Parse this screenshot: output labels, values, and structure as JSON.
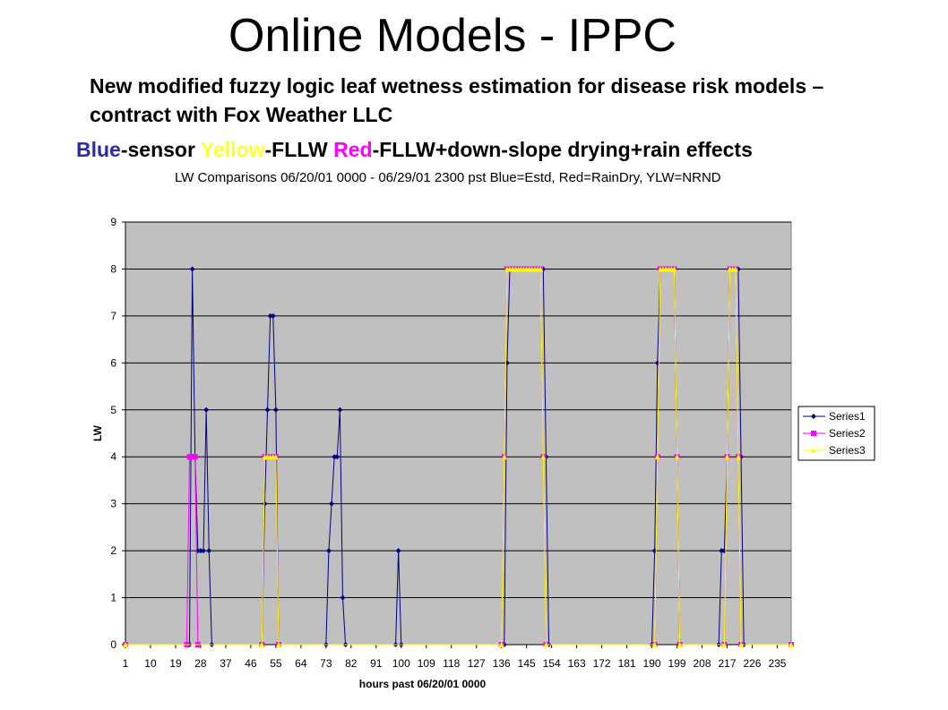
{
  "slide": {
    "title": "Online Models - IPPC",
    "subtitle": "New modified fuzzy logic leaf wetness estimation for disease risk models – contract with Fox Weather LLC",
    "legend_parts": [
      {
        "text": "Blue",
        "color": "#2a2aaa"
      },
      {
        "text": "-sensor ",
        "color": "#000000"
      },
      {
        "text": "Yellow",
        "color": "#ffff33"
      },
      {
        "text": "-FLLW ",
        "color": "#000000"
      },
      {
        "text": "Red",
        "color": "#ff00ff"
      },
      {
        "text": "-FLLW+down-slope drying+rain effects",
        "color": "#000000"
      }
    ]
  },
  "chart_data": {
    "type": "line",
    "title": "LW Comparisons 06/20/01 0000 - 06/29/01 2300 pst Blue=Estd, Red=RainDry, YLW=NRND",
    "xlabel": "hours past 06/20/01 0000",
    "ylabel": "LW",
    "xlim": [
      1,
      240
    ],
    "ylim": [
      0,
      9
    ],
    "yticks": [
      0,
      1,
      2,
      3,
      4,
      5,
      6,
      7,
      8,
      9
    ],
    "xticks": [
      1,
      10,
      19,
      28,
      37,
      46,
      55,
      64,
      73,
      82,
      91,
      100,
      109,
      118,
      127,
      136,
      145,
      154,
      163,
      172,
      181,
      190,
      199,
      208,
      217,
      226,
      235
    ],
    "grid": "horizontal",
    "legend_position": "right",
    "plot_background": "#c0c0c0",
    "series": [
      {
        "name": "Series1",
        "color": "#000080",
        "marker": "diamond",
        "points": [
          [
            1,
            0
          ],
          [
            24,
            0
          ],
          [
            25,
            8
          ],
          [
            26,
            4
          ],
          [
            27,
            2
          ],
          [
            28,
            2
          ],
          [
            29,
            2
          ],
          [
            30,
            5
          ],
          [
            31,
            2
          ],
          [
            32,
            0
          ],
          [
            50,
            0
          ],
          [
            51,
            3
          ],
          [
            52,
            5
          ],
          [
            53,
            7
          ],
          [
            54,
            7
          ],
          [
            55,
            5
          ],
          [
            56,
            0
          ],
          [
            73,
            0
          ],
          [
            74,
            2
          ],
          [
            75,
            3
          ],
          [
            76,
            4
          ],
          [
            77,
            4
          ],
          [
            78,
            5
          ],
          [
            79,
            1
          ],
          [
            80,
            0
          ],
          [
            98,
            0
          ],
          [
            99,
            2
          ],
          [
            100,
            0
          ],
          [
            137,
            0
          ],
          [
            138,
            6
          ],
          [
            139,
            8
          ],
          [
            140,
            8
          ],
          [
            141,
            8
          ],
          [
            142,
            8
          ],
          [
            143,
            8
          ],
          [
            144,
            8
          ],
          [
            145,
            8
          ],
          [
            146,
            8
          ],
          [
            147,
            8
          ],
          [
            148,
            8
          ],
          [
            149,
            8
          ],
          [
            150,
            8
          ],
          [
            151,
            8
          ],
          [
            152,
            4
          ],
          [
            153,
            0
          ],
          [
            190,
            0
          ],
          [
            191,
            2
          ],
          [
            192,
            6
          ],
          [
            193,
            8
          ],
          [
            194,
            8
          ],
          [
            195,
            8
          ],
          [
            196,
            8
          ],
          [
            197,
            8
          ],
          [
            198,
            8
          ],
          [
            199,
            4
          ],
          [
            200,
            0
          ],
          [
            214,
            0
          ],
          [
            215,
            2
          ],
          [
            216,
            2
          ],
          [
            217,
            4
          ],
          [
            218,
            8
          ],
          [
            219,
            8
          ],
          [
            220,
            8
          ],
          [
            221,
            8
          ],
          [
            222,
            4
          ],
          [
            223,
            0
          ],
          [
            240,
            0
          ]
        ]
      },
      {
        "name": "Series2",
        "color": "#ff00ff",
        "marker": "square",
        "points": [
          [
            1,
            0
          ],
          [
            23,
            0
          ],
          [
            24,
            4
          ],
          [
            25,
            4
          ],
          [
            26,
            4
          ],
          [
            27,
            0
          ],
          [
            50,
            0
          ],
          [
            51,
            4
          ],
          [
            52,
            4
          ],
          [
            53,
            4
          ],
          [
            54,
            4
          ],
          [
            55,
            4
          ],
          [
            56,
            0
          ],
          [
            136,
            0
          ],
          [
            137,
            4
          ],
          [
            138,
            8
          ],
          [
            139,
            8
          ],
          [
            140,
            8
          ],
          [
            141,
            8
          ],
          [
            142,
            8
          ],
          [
            143,
            8
          ],
          [
            144,
            8
          ],
          [
            145,
            8
          ],
          [
            146,
            8
          ],
          [
            147,
            8
          ],
          [
            148,
            8
          ],
          [
            149,
            8
          ],
          [
            150,
            8
          ],
          [
            151,
            4
          ],
          [
            152,
            0
          ],
          [
            191,
            0
          ],
          [
            192,
            4
          ],
          [
            193,
            8
          ],
          [
            194,
            8
          ],
          [
            195,
            8
          ],
          [
            196,
            8
          ],
          [
            197,
            8
          ],
          [
            198,
            8
          ],
          [
            199,
            4
          ],
          [
            200,
            0
          ],
          [
            216,
            0
          ],
          [
            217,
            4
          ],
          [
            218,
            8
          ],
          [
            219,
            8
          ],
          [
            220,
            8
          ],
          [
            221,
            4
          ],
          [
            222,
            0
          ],
          [
            240,
            0
          ]
        ]
      },
      {
        "name": "Series3",
        "color": "#ffff00",
        "marker": "triangle",
        "points": [
          [
            1,
            0
          ],
          [
            50,
            0
          ],
          [
            51,
            4
          ],
          [
            52,
            4
          ],
          [
            53,
            4
          ],
          [
            54,
            4
          ],
          [
            55,
            4
          ],
          [
            56,
            0
          ],
          [
            136,
            0
          ],
          [
            137,
            4
          ],
          [
            138,
            8
          ],
          [
            139,
            8
          ],
          [
            140,
            8
          ],
          [
            141,
            8
          ],
          [
            142,
            8
          ],
          [
            143,
            8
          ],
          [
            144,
            8
          ],
          [
            145,
            8
          ],
          [
            146,
            8
          ],
          [
            147,
            8
          ],
          [
            148,
            8
          ],
          [
            149,
            8
          ],
          [
            150,
            8
          ],
          [
            151,
            4
          ],
          [
            152,
            0
          ],
          [
            191,
            0
          ],
          [
            192,
            4
          ],
          [
            193,
            8
          ],
          [
            194,
            8
          ],
          [
            195,
            8
          ],
          [
            196,
            8
          ],
          [
            197,
            8
          ],
          [
            198,
            8
          ],
          [
            199,
            4
          ],
          [
            200,
            0
          ],
          [
            216,
            0
          ],
          [
            217,
            4
          ],
          [
            218,
            8
          ],
          [
            219,
            8
          ],
          [
            220,
            8
          ],
          [
            221,
            4
          ],
          [
            222,
            0
          ],
          [
            240,
            0
          ]
        ]
      }
    ]
  }
}
